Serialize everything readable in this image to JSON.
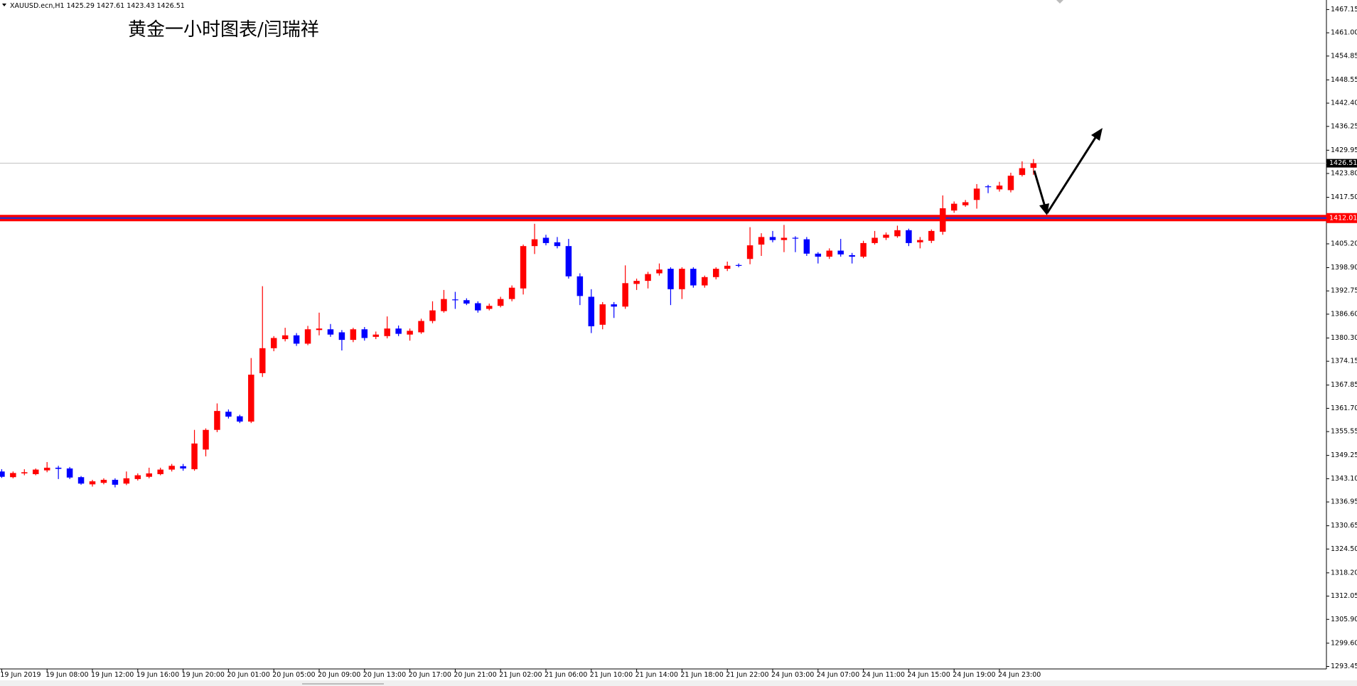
{
  "chart_data": {
    "type": "candlestick",
    "header": "XAUUSD.ecn,H1  1425.29 1427.61 1423.43 1426.51",
    "title": "黄金一小时图表/闫瑞祥",
    "up_color": "#ff0000",
    "down_color": "#0000ff",
    "support_level": 1412.01,
    "support_color": "#ff0000",
    "last_price": 1426.51,
    "ylim": [
      1292.98,
      1469.67
    ],
    "yticks": [
      1467.15,
      {
        "value": 1461,
        "label": "1461.00"
      },
      1454.85,
      1448.55,
      {
        "value": 1442.4,
        "label": "1442.40"
      },
      1436.25,
      1429.95,
      {
        "value": 1423.8,
        "label": "1423.80"
      },
      {
        "value": 1417.5,
        "label": "1417.50"
      },
      {
        "value": 1405.2,
        "label": "1405.20"
      },
      {
        "value": 1398.9,
        "label": "1398.90"
      },
      1392.75,
      {
        "value": 1386.6,
        "label": "1386.60"
      },
      {
        "value": 1380.3,
        "label": "1380.30"
      },
      1374.15,
      1367.85,
      {
        "value": 1361.7,
        "label": "1361.70"
      },
      1355.55,
      1349.25,
      {
        "value": 1343.1,
        "label": "1343.10"
      },
      1336.95,
      1330.65,
      {
        "value": 1324.5,
        "label": "1324.50"
      },
      {
        "value": 1318.2,
        "label": "1318.20"
      },
      1312.05,
      {
        "value": 1305.9,
        "label": "1305.90"
      },
      {
        "value": 1299.6,
        "label": "1299.60"
      },
      1293.45
    ],
    "categories": [
      "19 Jun 2019",
      null,
      null,
      null,
      "19 Jun 08:00",
      null,
      null,
      null,
      "19 Jun 12:00",
      null,
      null,
      null,
      "19 Jun 16:00",
      null,
      null,
      null,
      "19 Jun 20:00",
      null,
      null,
      null,
      "20 Jun 01:00",
      null,
      null,
      null,
      "20 Jun 05:00",
      null,
      null,
      null,
      "20 Jun 09:00",
      null,
      null,
      null,
      "20 Jun 13:00",
      null,
      null,
      null,
      "20 Jun 17:00",
      null,
      null,
      null,
      "20 Jun 21:00",
      null,
      null,
      null,
      "21 Jun 02:00",
      null,
      null,
      null,
      "21 Jun 06:00",
      null,
      null,
      null,
      "21 Jun 10:00",
      null,
      null,
      null,
      "21 Jun 14:00",
      null,
      null,
      null,
      "21 Jun 18:00",
      null,
      null,
      null,
      "21 Jun 22:00",
      null,
      null,
      null,
      "24 Jun 03:00",
      null,
      null,
      null,
      "24 Jun 07:00",
      null,
      null,
      null,
      "24 Jun 11:00",
      null,
      null,
      null,
      "24 Jun 15:00",
      null,
      null,
      null,
      "24 Jun 19:00",
      null,
      null,
      null,
      "24 Jun 23:00",
      null,
      null,
      null
    ],
    "open": [
      1345.0,
      1343.5,
      1344.5,
      1344.3,
      1345.3,
      1346.0,
      1345.8,
      1343.5,
      1341.6,
      1342.0,
      1342.8,
      1341.8,
      1343.0,
      1343.6,
      1344.3,
      1345.5,
      1346.4,
      1345.6,
      1350.8,
      1356.0,
      1360.8,
      1359.6,
      1358.2,
      1371.0,
      1377.6,
      1380.0,
      1381.0,
      1378.8,
      1382.4,
      1382.6,
      1381.8,
      1379.8,
      1382.6,
      1380.6,
      1380.8,
      1382.8,
      1381.2,
      1381.8,
      1384.8,
      1387.4,
      1390.5,
      1390.3,
      1389.5,
      1388.0,
      1388.8,
      1390.6,
      1393.4,
      1404.6,
      1406.8,
      1405.6,
      1404.6,
      1396.6,
      1391.2,
      1383.8,
      1389.2,
      1388.6,
      1394.6,
      1395.4,
      1397.4,
      1398.6,
      1393.2,
      1398.6,
      1394.2,
      1396.4,
      1398.6,
      1399.6,
      1401.2,
      1405.0,
      1407.0,
      1406.2,
      1406.8,
      1406.4,
      1402.6,
      1401.8,
      1403.4,
      1402.2,
      1401.8,
      1405.4,
      1406.8,
      1407.2,
      1408.8,
      1405.6,
      1406.0,
      1408.4,
      1414.0,
      1415.4,
      1416.8,
      1420.4,
      1419.6,
      1419.4,
      1423.4,
      1425.29
    ],
    "high": [
      1345.6,
      1345.0,
      1345.6,
      1345.8,
      1347.5,
      1346.5,
      1346.2,
      1343.8,
      1342.8,
      1343.2,
      1343.2,
      1345.0,
      1344.5,
      1346.0,
      1346.0,
      1347.0,
      1347.0,
      1356.0,
      1356.4,
      1363.0,
      1361.4,
      1360.0,
      1375.0,
      1394.0,
      1380.8,
      1383.0,
      1381.6,
      1383.5,
      1387.0,
      1384.0,
      1382.4,
      1383.0,
      1383.2,
      1382.0,
      1386.0,
      1383.6,
      1382.8,
      1385.4,
      1390.0,
      1393.0,
      1392.5,
      1390.8,
      1390.0,
      1389.4,
      1391.2,
      1394.2,
      1405.0,
      1410.5,
      1407.6,
      1407.0,
      1406.5,
      1397.4,
      1393.2,
      1389.8,
      1389.8,
      1399.5,
      1396.0,
      1397.8,
      1400.0,
      1399.0,
      1399.0,
      1399.0,
      1396.8,
      1399.0,
      1400.5,
      1400.0,
      1409.6,
      1408.0,
      1408.6,
      1410.2,
      1407.2,
      1407.0,
      1403.0,
      1404.0,
      1406.5,
      1402.8,
      1406.0,
      1408.6,
      1408.2,
      1410.0,
      1409.2,
      1407.0,
      1409.0,
      1418.0,
      1416.4,
      1416.8,
      1421.0,
      1420.8,
      1421.6,
      1424.0,
      1427.0,
      1427.61
    ],
    "low": [
      1343.3,
      1343.2,
      1344.0,
      1344.0,
      1344.8,
      1343.0,
      1343.0,
      1341.5,
      1341.0,
      1341.6,
      1340.8,
      1341.4,
      1342.6,
      1343.2,
      1344.0,
      1345.0,
      1345.2,
      1345.2,
      1349.0,
      1355.4,
      1359.0,
      1357.8,
      1357.8,
      1370.0,
      1376.8,
      1379.4,
      1378.2,
      1378.4,
      1381.0,
      1380.6,
      1377.0,
      1379.2,
      1379.6,
      1380.0,
      1380.2,
      1380.8,
      1379.6,
      1381.4,
      1384.2,
      1387.0,
      1388.0,
      1389.0,
      1387.0,
      1387.6,
      1388.4,
      1390.0,
      1391.8,
      1402.5,
      1404.8,
      1404.0,
      1396.0,
      1389.0,
      1381.6,
      1382.6,
      1385.6,
      1388.0,
      1393.0,
      1393.4,
      1396.8,
      1389.0,
      1390.6,
      1393.6,
      1393.6,
      1395.8,
      1398.0,
      1399.0,
      1399.8,
      1402.0,
      1405.6,
      1403.0,
      1403.0,
      1402.0,
      1400.0,
      1401.2,
      1401.8,
      1400.0,
      1401.4,
      1405.0,
      1406.2,
      1406.8,
      1404.6,
      1404.0,
      1405.4,
      1407.6,
      1413.4,
      1415.0,
      1414.5,
      1418.6,
      1419.0,
      1418.8,
      1423.0,
      1423.43
    ],
    "close": [
      1343.6,
      1344.6,
      1344.8,
      1345.5,
      1346.0,
      1345.7,
      1343.4,
      1341.8,
      1342.4,
      1342.8,
      1341.5,
      1343.2,
      1344.0,
      1344.5,
      1345.5,
      1346.5,
      1345.8,
      1352.4,
      1356.0,
      1361.0,
      1359.5,
      1358.2,
      1370.6,
      1377.6,
      1380.3,
      1381.0,
      1378.8,
      1382.6,
      1382.8,
      1381.2,
      1379.8,
      1382.6,
      1380.3,
      1381.2,
      1382.8,
      1381.4,
      1382.2,
      1384.8,
      1387.6,
      1390.6,
      1390.3,
      1389.4,
      1387.6,
      1388.8,
      1390.6,
      1393.6,
      1404.6,
      1406.4,
      1405.4,
      1404.6,
      1396.6,
      1391.4,
      1383.4,
      1389.2,
      1388.6,
      1394.8,
      1395.4,
      1397.2,
      1398.4,
      1393.2,
      1398.6,
      1394.2,
      1396.4,
      1398.6,
      1399.4,
      1399.4,
      1404.8,
      1407.0,
      1406.2,
      1406.8,
      1406.6,
      1402.6,
      1401.8,
      1403.4,
      1402.4,
      1401.8,
      1405.4,
      1406.8,
      1407.6,
      1408.8,
      1405.4,
      1406.2,
      1408.6,
      1414.6,
      1415.8,
      1416.2,
      1419.8,
      1420.2,
      1420.6,
      1423.2,
      1425.2,
      1426.51
    ]
  }
}
